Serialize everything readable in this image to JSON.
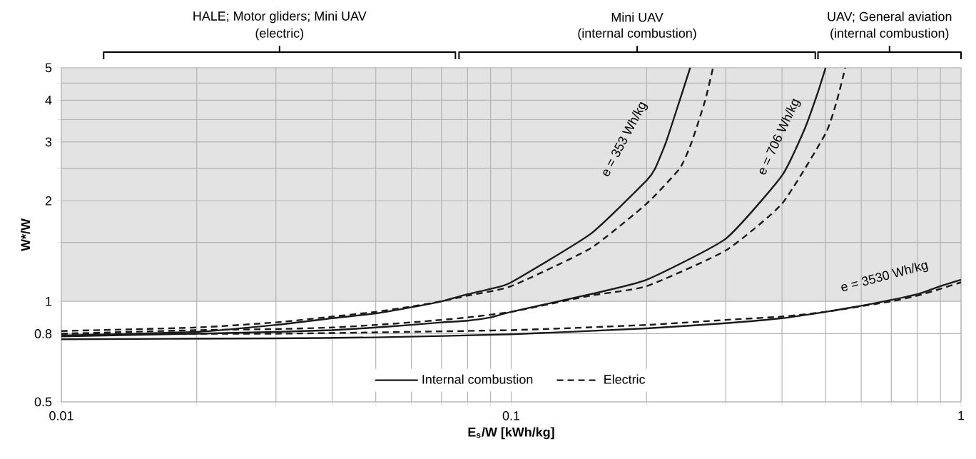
{
  "chart_data": {
    "type": "line",
    "xlabel": "E$_{s}$/W [kWh/kg]",
    "ylabel": "W*/W",
    "log": "xy",
    "grid": true,
    "legend": "bottom",
    "xlim": [
      0.01,
      1
    ],
    "ylim": [
      0.5,
      5
    ],
    "xticks": [
      0.01,
      {
        "value": 0.02,
        "label": null
      },
      {
        "value": 0.03,
        "label": null
      },
      {
        "value": 0.04,
        "label": null
      },
      {
        "value": 0.05,
        "label": null
      },
      {
        "value": 0.06,
        "label": null
      },
      {
        "value": 0.07,
        "label": null
      },
      {
        "value": 0.08,
        "label": null
      },
      {
        "value": 0.09,
        "label": null
      },
      0.1,
      {
        "value": 0.2,
        "label": null
      },
      {
        "value": 0.3,
        "label": null
      },
      {
        "value": 0.4,
        "label": null
      },
      {
        "value": 0.5,
        "label": null
      },
      {
        "value": 0.6,
        "label": null
      },
      {
        "value": 0.7,
        "label": null
      },
      {
        "value": 0.8,
        "label": null
      },
      {
        "value": 0.9,
        "label": null
      },
      1
    ],
    "yticks": [
      0.5,
      0.8,
      1,
      {
        "value": 1.5,
        "label": null
      },
      2,
      {
        "value": 2.5,
        "label": null
      },
      3,
      {
        "value": 3.5,
        "label": null
      },
      4,
      {
        "value": 4.5,
        "label": null
      },
      5
    ],
    "bands": [
      {
        "axis": "y",
        "from": 1,
        "to": 5,
        "color": "#e3e3e3"
      }
    ],
    "series": [
      {
        "name": "Internal combustion",
        "color": "#1a1a1a",
        "line_style": "solid",
        "x": [
          0.01,
          0.02,
          0.03,
          0.04,
          0.05,
          0.06,
          0.07,
          0.08,
          0.09,
          0.1,
          0.15,
          0.2,
          0.209,
          0.221,
          0.237,
          0.25
        ],
        "values": [
          0.79,
          0.81,
          0.85,
          0.89,
          0.92,
          0.96,
          1.0,
          1.05,
          1.09,
          1.14,
          1.59,
          2.3,
          2.5,
          3,
          4,
          5
        ]
      },
      {
        "name": "Electric",
        "color": "#1a1a1a",
        "line_style": "dashed",
        "x": [
          0.01,
          0.02,
          0.03,
          0.04,
          0.05,
          0.06,
          0.07,
          0.08,
          0.1,
          0.15,
          0.2,
          0.237,
          0.252,
          0.27,
          0.281
        ],
        "values": [
          0.815,
          0.835,
          0.865,
          0.9,
          0.93,
          0.965,
          1.0,
          1.04,
          1.11,
          1.44,
          1.96,
          2.5,
          3,
          4,
          5
        ]
      },
      {
        "color": "#1a1a1a",
        "line_style": "solid",
        "x": [
          0.01,
          0.02,
          0.03,
          0.04,
          0.05,
          0.06,
          0.07,
          0.08,
          0.09,
          0.1,
          0.15,
          0.2,
          0.3,
          0.4,
          0.45,
          0.48,
          0.5
        ],
        "values": [
          0.785,
          0.8,
          0.81,
          0.82,
          0.835,
          0.85,
          0.865,
          0.875,
          0.895,
          0.93,
          1.05,
          1.16,
          1.54,
          2.38,
          3.3,
          4.2,
          5
        ]
      },
      {
        "color": "#1a1a1a",
        "line_style": "dashed",
        "x": [
          0.01,
          0.02,
          0.03,
          0.04,
          0.05,
          0.06,
          0.07,
          0.08,
          0.1,
          0.15,
          0.2,
          0.3,
          0.4,
          0.5,
          0.53,
          0.553
        ],
        "values": [
          0.8,
          0.82,
          0.826,
          0.835,
          0.85,
          0.865,
          0.88,
          0.895,
          0.93,
          1.04,
          1.11,
          1.42,
          1.96,
          3.18,
          4.0,
          5
        ]
      },
      {
        "color": "#1a1a1a",
        "line_style": "solid",
        "x": [
          0.01,
          0.03,
          0.05,
          0.1,
          0.2,
          0.3,
          0.4,
          0.5,
          0.6,
          0.7,
          0.8,
          0.9,
          1
        ],
        "values": [
          0.77,
          0.775,
          0.78,
          0.797,
          0.83,
          0.86,
          0.89,
          0.93,
          0.97,
          1.01,
          1.05,
          1.11,
          1.16
        ]
      },
      {
        "color": "#1a1a1a",
        "line_style": "dashed",
        "x": [
          0.01,
          0.03,
          0.1,
          0.2,
          0.3,
          0.4,
          0.5,
          0.7,
          0.8,
          0.9,
          1
        ],
        "values": [
          0.8,
          0.8,
          0.82,
          0.85,
          0.88,
          0.9,
          0.93,
          1.0,
          1.04,
          1.09,
          1.14
        ]
      }
    ],
    "annotations": [
      "HALE; Motor gliders; Mini UAV",
      "(electric)",
      "Mini UAV",
      "(internal combustion)",
      "UAV; General aviation",
      "(internal combustion)",
      "e = 353 Wh/kg",
      "e = 706 Wh/kg",
      "e = 3530 Wh/kg"
    ]
  }
}
